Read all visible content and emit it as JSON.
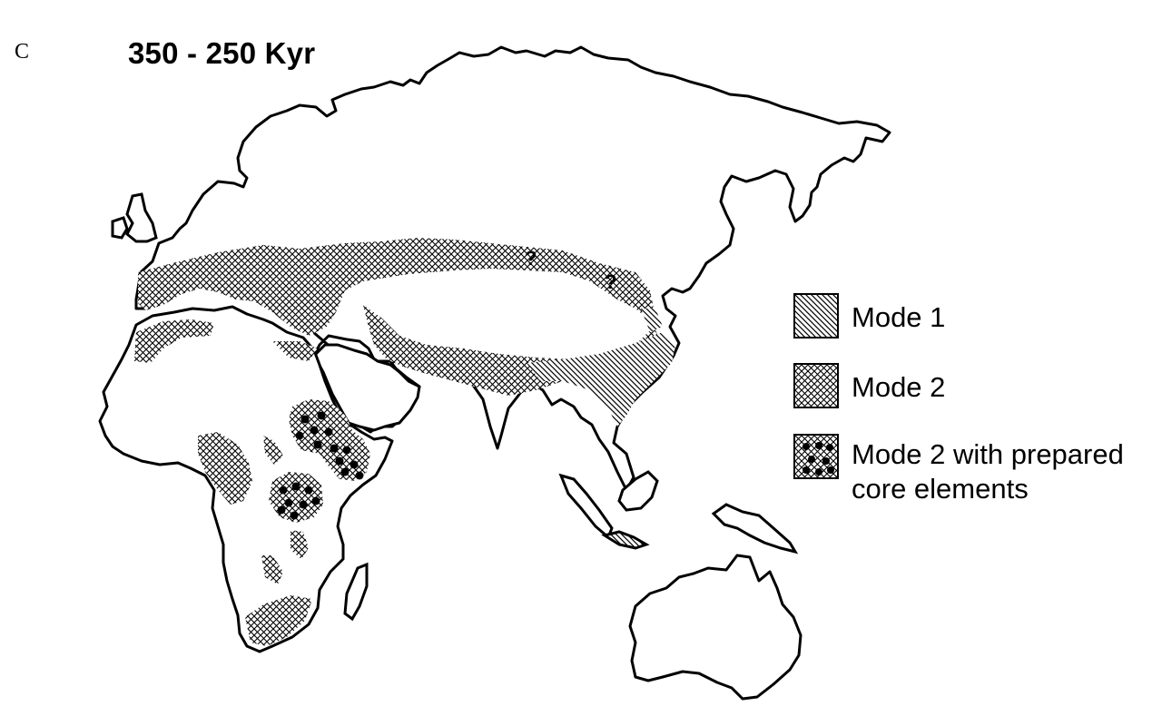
{
  "panel_label": "C",
  "title": "350 - 250 Kyr",
  "question_marks": [
    "?",
    "?"
  ],
  "legend": [
    {
      "label": "Mode 1",
      "pattern": "diagonal-hatch"
    },
    {
      "label": "Mode 2",
      "pattern": "crosshatch"
    },
    {
      "label": "Mode 2 with prepared\ncore elements",
      "pattern": "crosshatch-with-dots"
    }
  ],
  "colors": {
    "ink": "#000000",
    "background": "#ffffff"
  }
}
